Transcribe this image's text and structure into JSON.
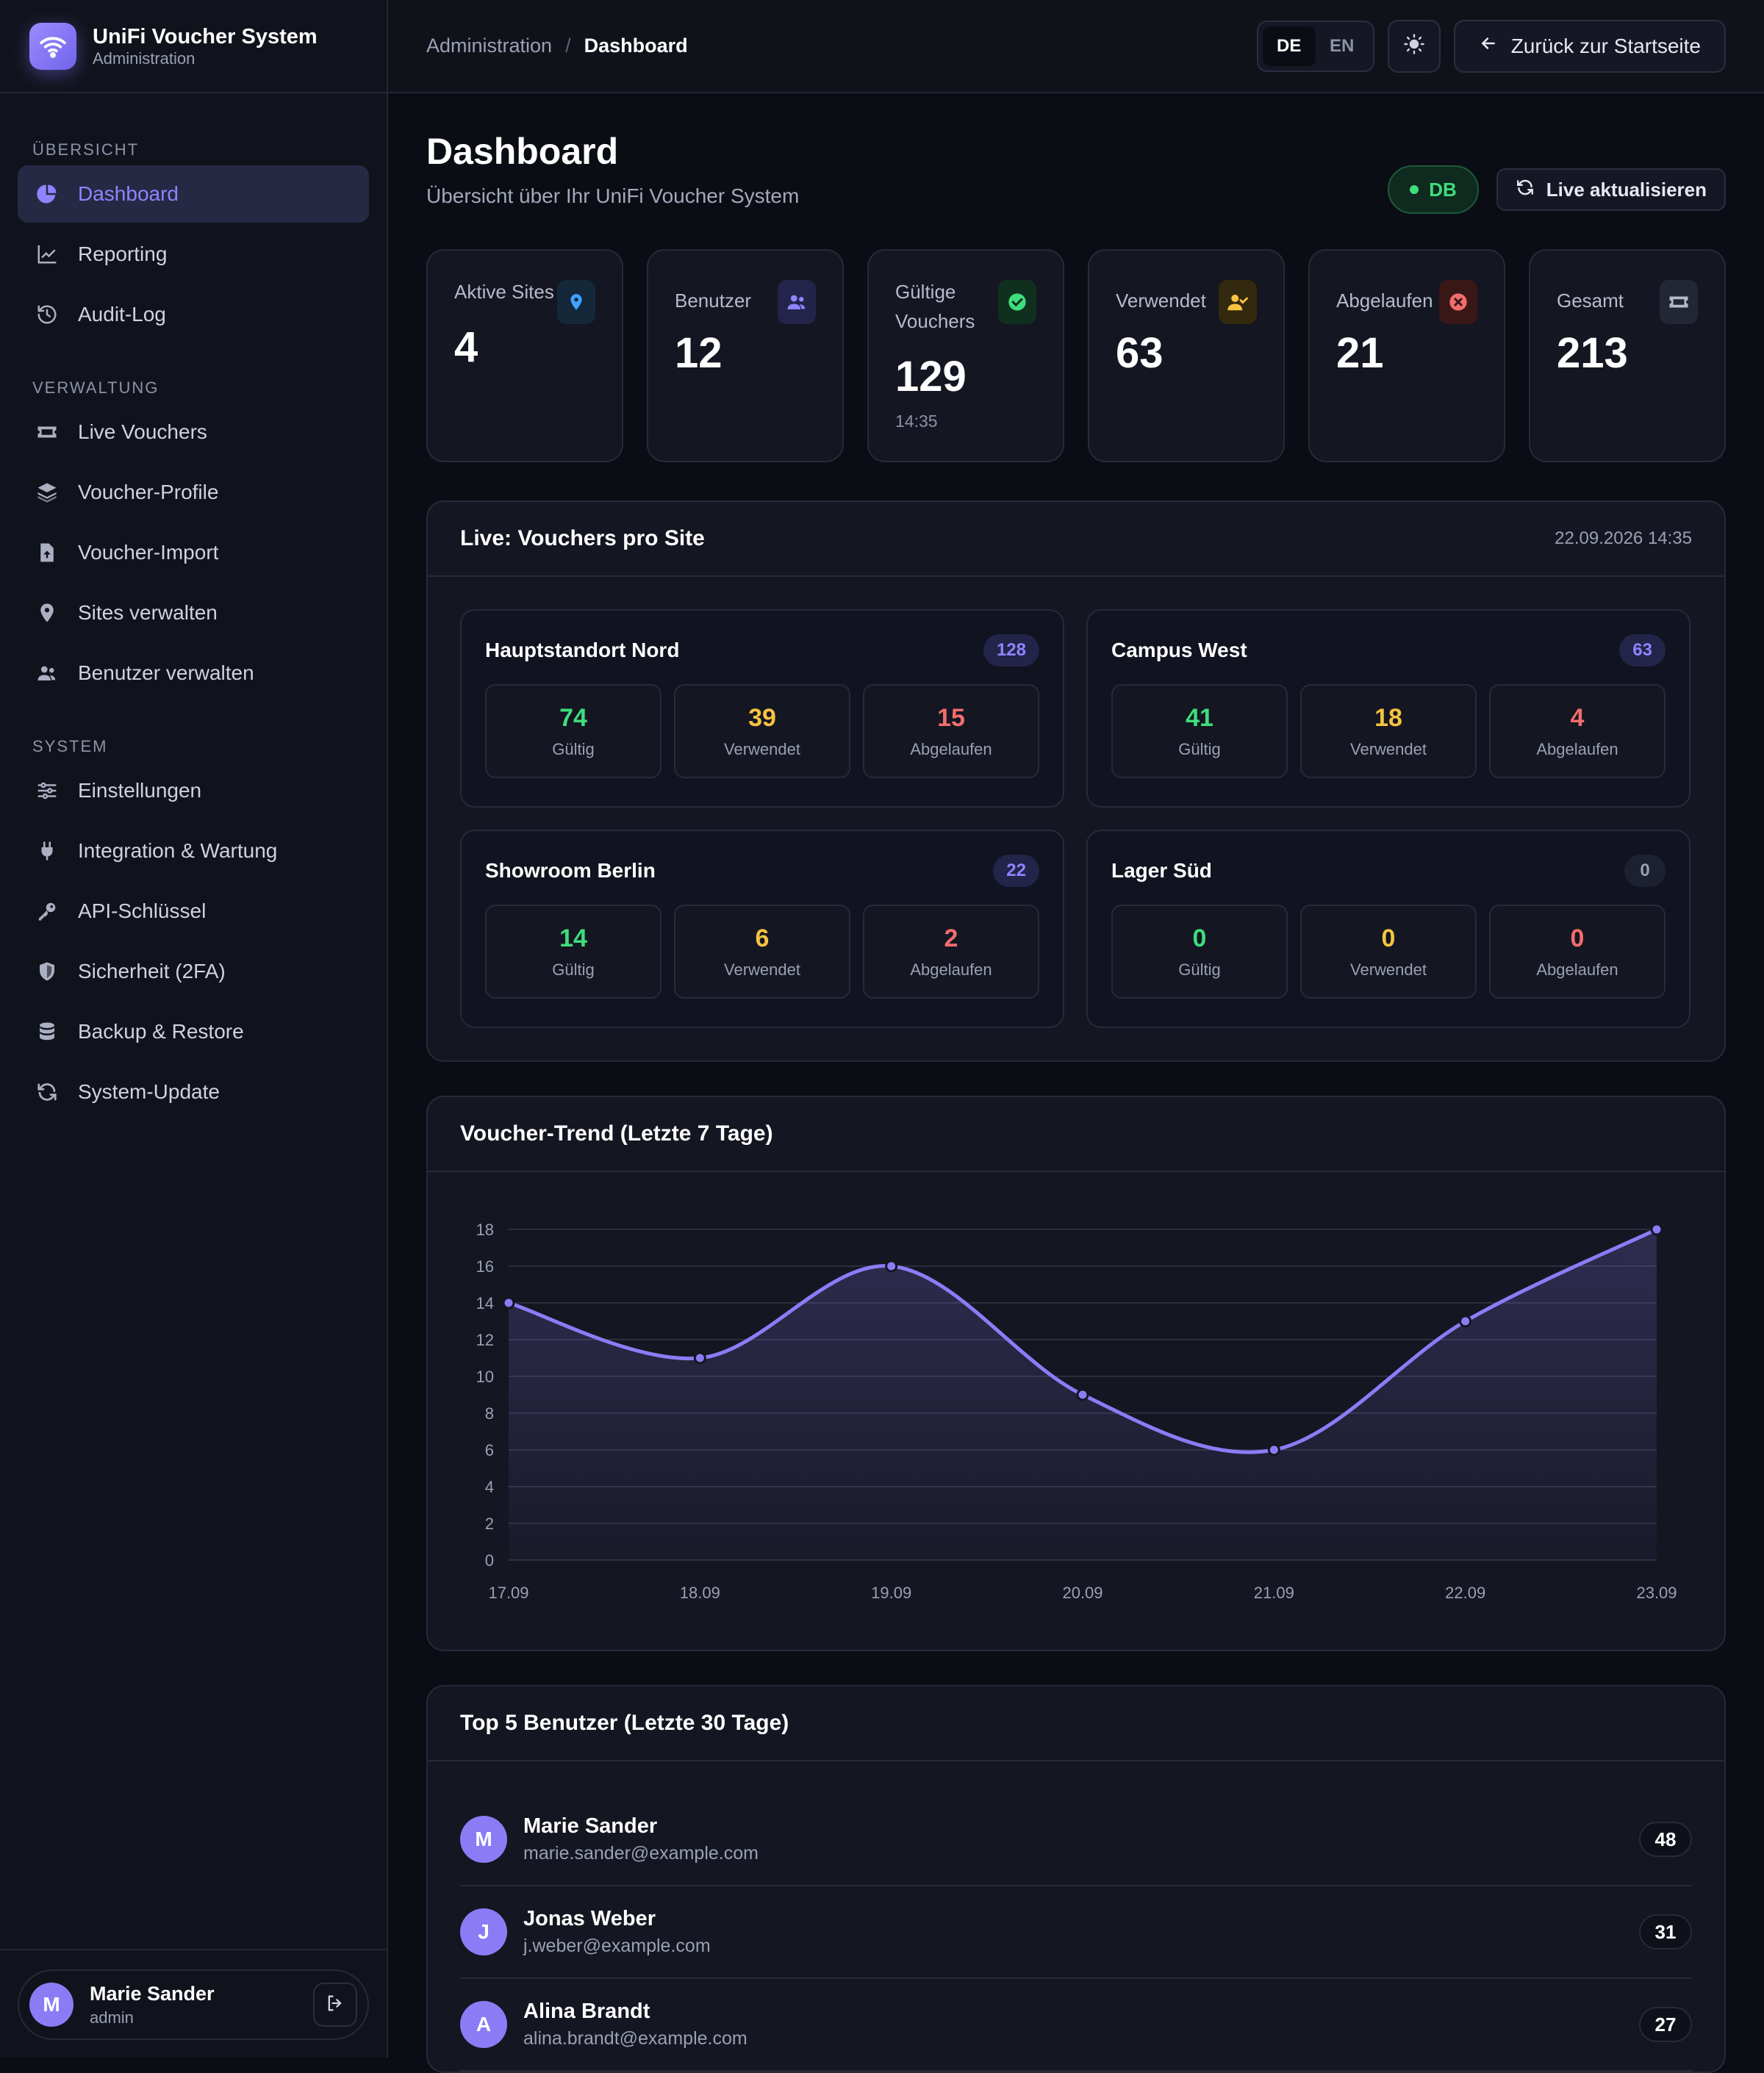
{
  "brand": {
    "title": "UniFi Voucher System",
    "subtitle": "Administration"
  },
  "sidebar": {
    "sections": [
      {
        "label": "ÜBERSICHT",
        "items": [
          {
            "label": "Dashboard",
            "icon": "pie-chart-icon",
            "active": true
          },
          {
            "label": "Reporting",
            "icon": "line-chart-icon"
          },
          {
            "label": "Audit-Log",
            "icon": "history-icon"
          }
        ]
      },
      {
        "label": "VERWALTUNG",
        "items": [
          {
            "label": "Live Vouchers",
            "icon": "ticket-icon"
          },
          {
            "label": "Voucher-Profile",
            "icon": "layers-icon"
          },
          {
            "label": "Voucher-Import",
            "icon": "file-upload-icon"
          },
          {
            "label": "Sites verwalten",
            "icon": "map-pin-icon"
          },
          {
            "label": "Benutzer verwalten",
            "icon": "users-icon"
          }
        ]
      },
      {
        "label": "SYSTEM",
        "items": [
          {
            "label": "Einstellungen",
            "icon": "sliders-icon"
          },
          {
            "label": "Integration & Wartung",
            "icon": "plug-icon"
          },
          {
            "label": "API-Schlüssel",
            "icon": "key-icon"
          },
          {
            "label": "Sicherheit (2FA)",
            "icon": "shield-icon"
          },
          {
            "label": "Backup & Restore",
            "icon": "database-icon"
          },
          {
            "label": "System-Update",
            "icon": "refresh-icon"
          }
        ]
      }
    ],
    "user": {
      "initial": "M",
      "name": "Marie Sander",
      "role": "admin"
    }
  },
  "topbar": {
    "breadcrumb": [
      "Administration",
      "Dashboard"
    ],
    "languages": [
      "DE",
      "EN"
    ],
    "active_language": "DE",
    "back_label": "Zurück zur Startseite"
  },
  "page": {
    "title": "Dashboard",
    "subtitle": "Übersicht über Ihr UniFi Voucher System",
    "db_badge": "DB",
    "live_label": "Live aktualisieren"
  },
  "stats": [
    {
      "label": "Aktive Sites",
      "value": "4",
      "icon": "map-pin-icon",
      "color": "#3fa2ff",
      "bg": "#14283a"
    },
    {
      "label": "Benutzer",
      "value": "12",
      "icon": "users-icon",
      "color": "#8f84ff",
      "bg": "#24244a"
    },
    {
      "label": "Gültige Vouchers",
      "value": "129",
      "note": "14:35",
      "icon": "check-circle-icon",
      "color": "#3fdd7e",
      "bg": "#10301f"
    },
    {
      "label": "Verwendet",
      "value": "63",
      "icon": "user-check-icon",
      "color": "#f6c342",
      "bg": "#33290f"
    },
    {
      "label": "Abgelaufen",
      "value": "21",
      "icon": "x-circle-icon",
      "color": "#f26d6d",
      "bg": "#3a1717"
    },
    {
      "label": "Gesamt",
      "value": "213",
      "icon": "ticket-icon",
      "color": "#b6bbcb",
      "bg": "#232634"
    }
  ],
  "sites_panel": {
    "title": "Live: Vouchers pro Site",
    "timestamp": "22.09.2026 14:35",
    "labels": {
      "valid": "Gültig",
      "used": "Verwendet",
      "expired": "Abgelaufen"
    },
    "sites": [
      {
        "name": "Hauptstandort Nord",
        "total": "128",
        "valid": "74",
        "used": "39",
        "expired": "15"
      },
      {
        "name": "Campus West",
        "total": "63",
        "valid": "41",
        "used": "18",
        "expired": "4"
      },
      {
        "name": "Showroom Berlin",
        "total": "22",
        "valid": "14",
        "used": "6",
        "expired": "2"
      },
      {
        "name": "Lager Süd",
        "total": "0",
        "valid": "0",
        "used": "0",
        "expired": "0"
      }
    ]
  },
  "trend_panel": {
    "title": "Voucher-Trend (Letzte 7 Tage)"
  },
  "chart_data": {
    "type": "area",
    "x": [
      "17.09",
      "18.09",
      "19.09",
      "20.09",
      "21.09",
      "22.09",
      "23.09"
    ],
    "values": [
      14,
      11,
      16,
      9,
      6,
      13,
      18
    ],
    "ylim": [
      0,
      18
    ],
    "yticks": [
      0,
      2,
      4,
      6,
      8,
      10,
      12,
      14,
      16,
      18
    ],
    "grid": true,
    "color": "#8b7cf6"
  },
  "top_panel": {
    "title": "Top 5 Benutzer (Letzte 30 Tage)",
    "users": [
      {
        "initial": "M",
        "name": "Marie Sander",
        "email": "marie.sander@example.com",
        "count": "48"
      },
      {
        "initial": "J",
        "name": "Jonas Weber",
        "email": "j.weber@example.com",
        "count": "31"
      },
      {
        "initial": "A",
        "name": "Alina Brandt",
        "email": "alina.brandt@example.com",
        "count": "27"
      }
    ]
  }
}
